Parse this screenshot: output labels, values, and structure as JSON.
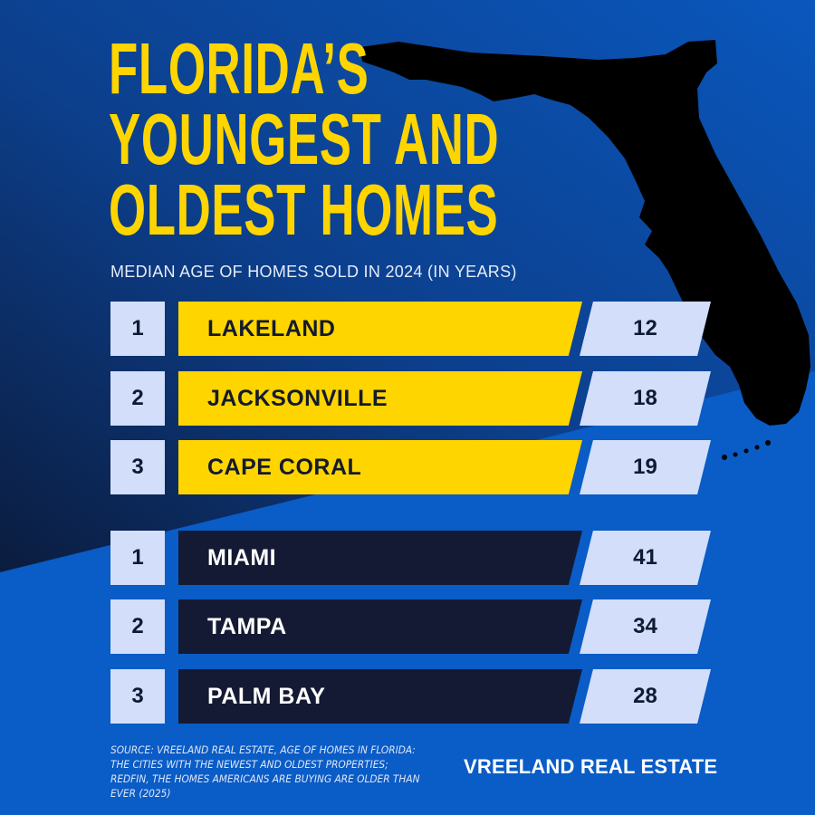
{
  "title_lines": [
    "FLORIDA’S",
    "YOUNGEST AND",
    "OLDEST HOMES"
  ],
  "subtitle": "MEDIAN AGE OF HOMES SOLD IN 2024 (IN YEARS)",
  "colors": {
    "background": "#0a5cc6",
    "accent_yellow": "#ffd500",
    "dark_navy": "#141a33",
    "value_box": "#d2defa"
  },
  "youngest": [
    {
      "rank": "1",
      "city": "LAKELAND",
      "value": "12"
    },
    {
      "rank": "2",
      "city": "JACKSONVILLE",
      "value": "18"
    },
    {
      "rank": "3",
      "city": "CAPE CORAL",
      "value": "19"
    }
  ],
  "oldest": [
    {
      "rank": "1",
      "city": "MIAMI",
      "value": "41"
    },
    {
      "rank": "2",
      "city": "TAMPA",
      "value": "34"
    },
    {
      "rank": "3",
      "city": "PALM BAY",
      "value": "28"
    }
  ],
  "source": "SOURCE:  VREELAND REAL ESTATE, AGE OF HOMES IN FLORIDA: THE CITIES WITH THE NEWEST AND OLDEST PROPERTIES; REDFIN, THE HOMES AMERICANS ARE BUYING ARE OLDER THAN EVER (2025)",
  "brand": "VREELAND REAL ESTATE",
  "map_icon": "florida-silhouette",
  "chart_data": {
    "type": "table",
    "title": "FLORIDA’S YOUNGEST AND OLDEST HOMES",
    "subtitle": "MEDIAN AGE OF HOMES SOLD IN 2024 (IN YEARS)",
    "groups": [
      {
        "categories": [
          "LAKELAND",
          "JACKSONVILLE",
          "CAPE CORAL"
        ],
        "ranks": [
          1,
          2,
          3
        ],
        "values": [
          12,
          18,
          19
        ]
      },
      {
        "categories": [
          "MIAMI",
          "TAMPA",
          "PALM BAY"
        ],
        "ranks": [
          1,
          2,
          3
        ],
        "values": [
          41,
          34,
          28
        ]
      }
    ]
  }
}
